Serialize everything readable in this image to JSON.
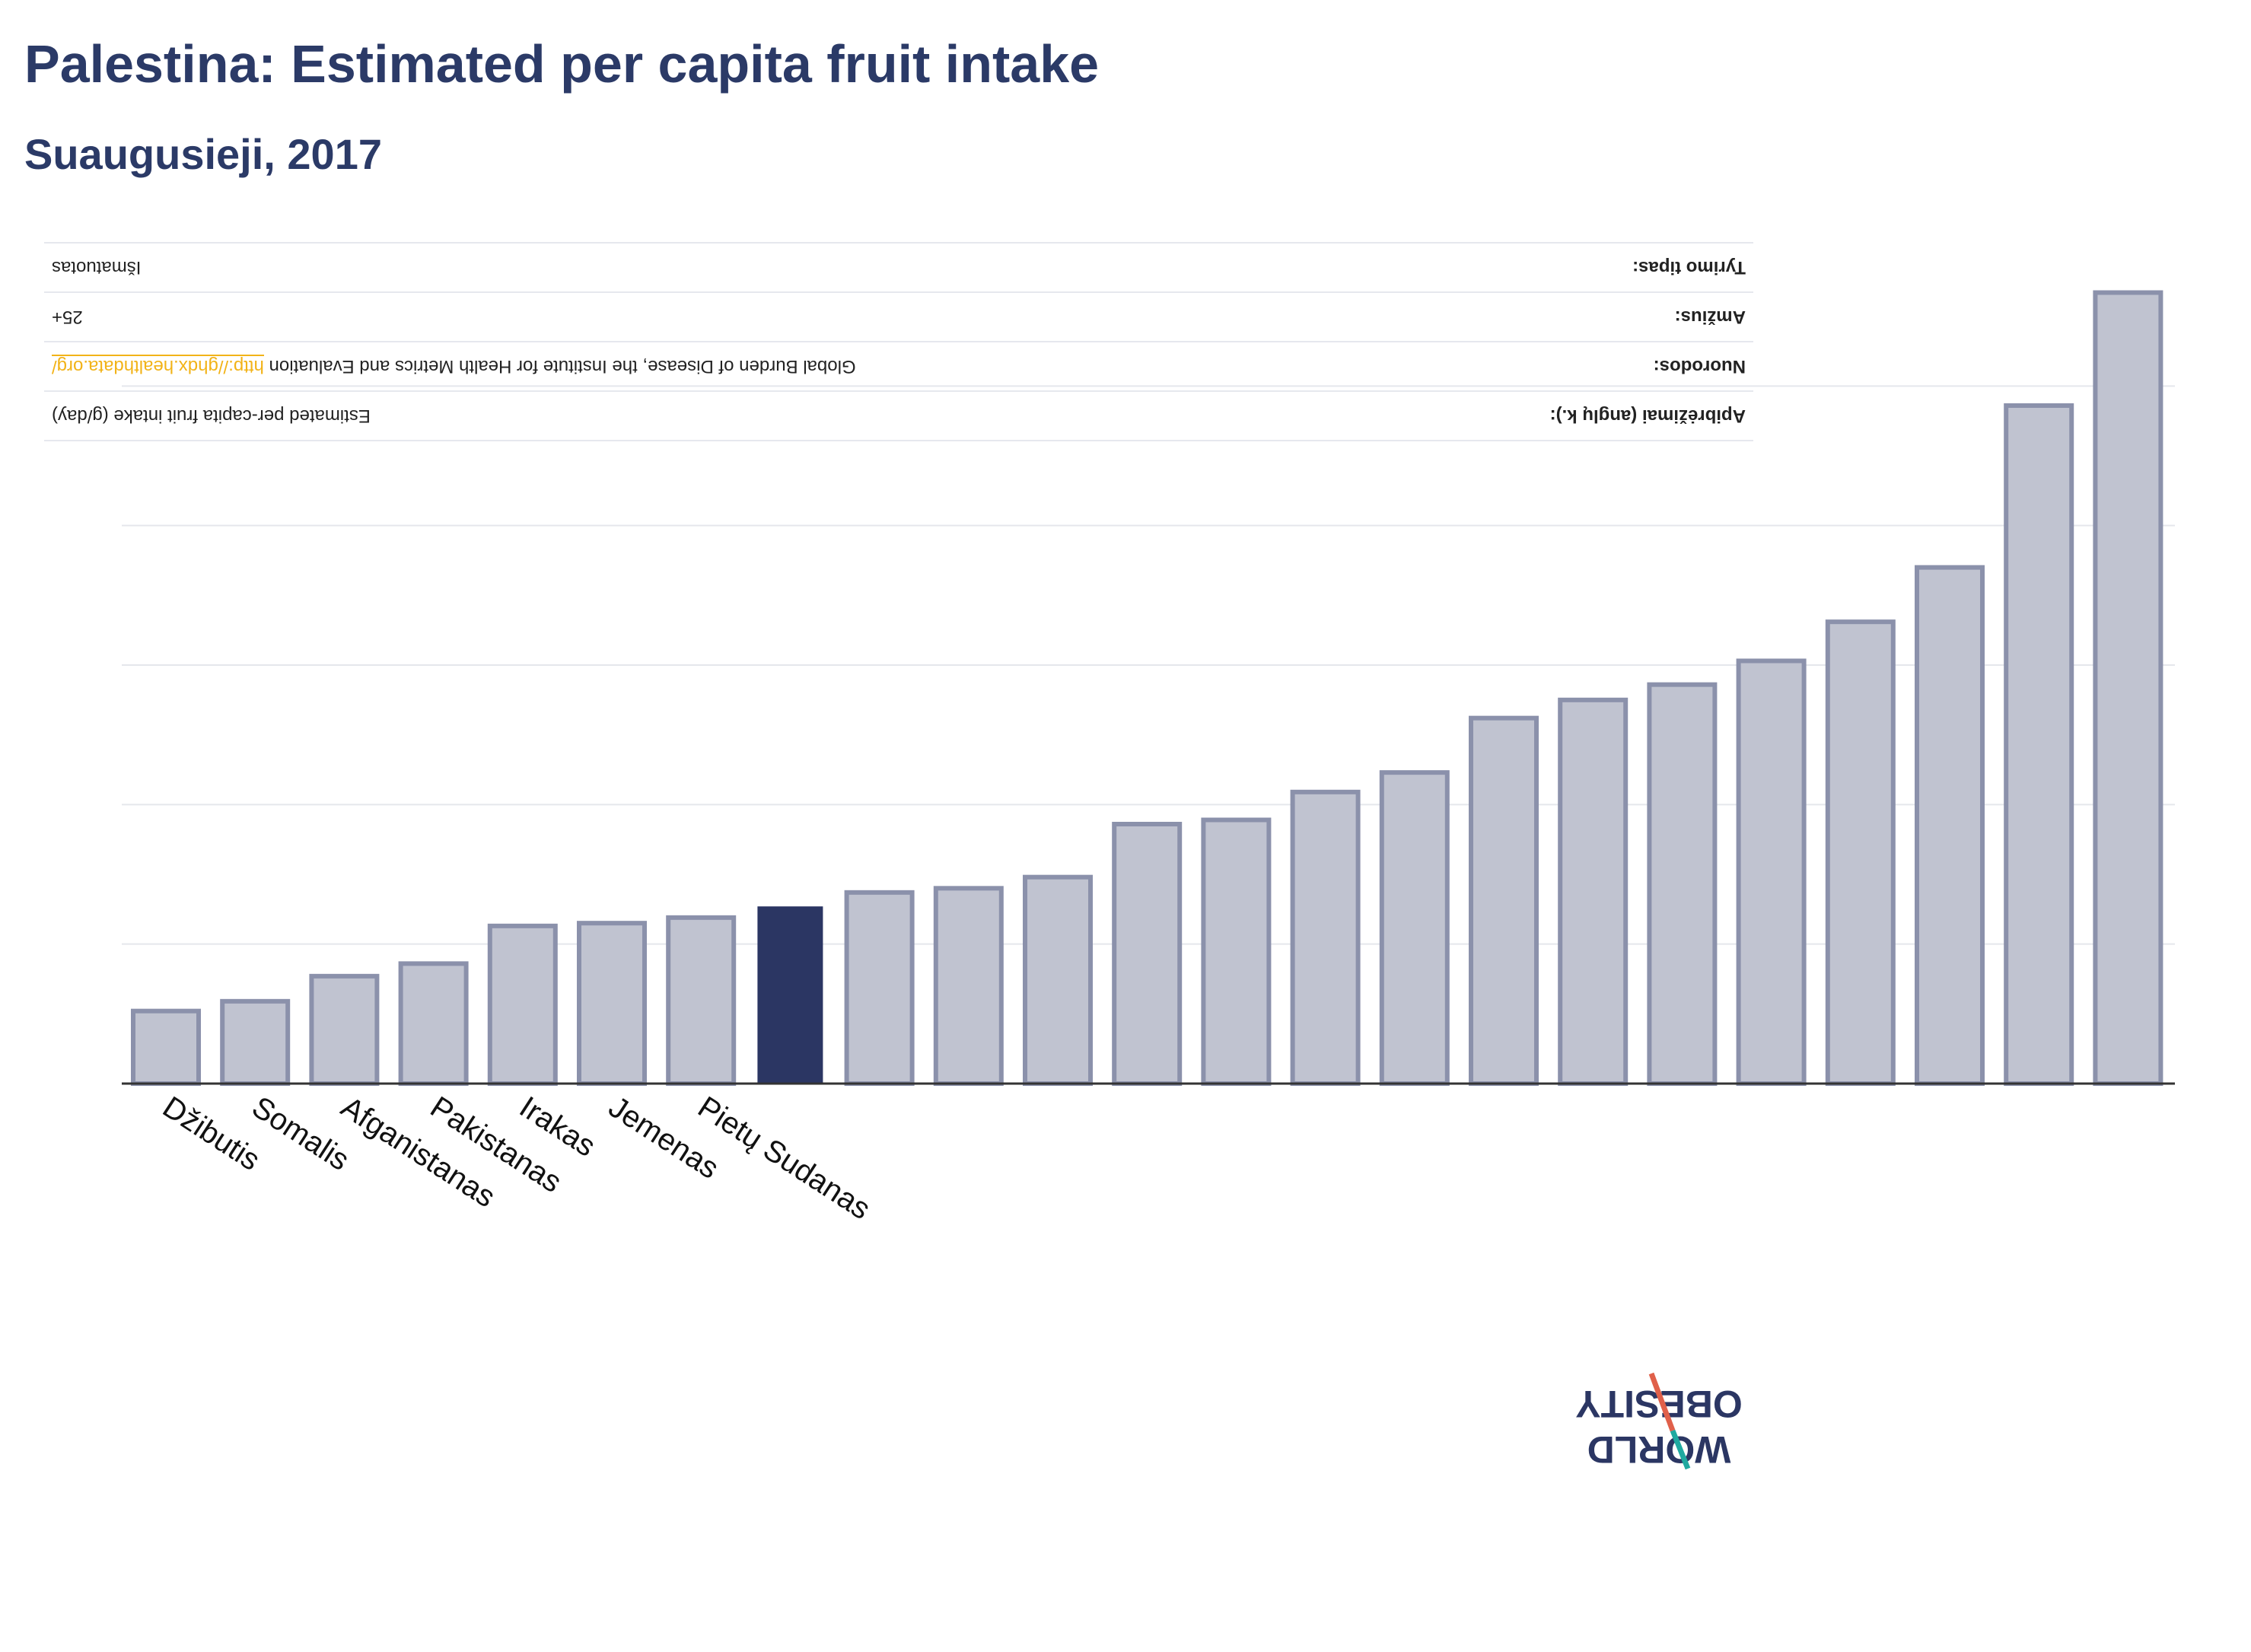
{
  "title": "Palestina: Estimated per capita fruit intake",
  "subtitle": "Suaugusieji, 2017",
  "info_panel": [
    {
      "label": "Apibrėžimai (anglų k.):",
      "value": "Estimated per-capita fruit intake (g/day)",
      "link": ""
    },
    {
      "label": "Nuorodos:",
      "value": "Global Burden of Disease, the Institute for Health Metrics and Evaluation ",
      "link": "http://ghdx.healthdata.org/"
    },
    {
      "label": "Amžius:",
      "value": "25+",
      "link": ""
    },
    {
      "label": "Tyrimo tipas:",
      "value": "Išmatuotas",
      "link": ""
    }
  ],
  "logo": {
    "line1": "WORLD",
    "line2": "OBESITY"
  },
  "colors": {
    "bar": "#c0c3d0",
    "bar_border": "#8b91ab",
    "highlight": "#2b3663",
    "grid": "#e5e7ec",
    "axis": "#333333"
  },
  "chart_data": {
    "type": "bar",
    "categories": [
      "Džibutis",
      "Somalis",
      "Afganistanas",
      "Pakistanas",
      "Irakas",
      "Jemenas",
      "Pietų Sudanas",
      "",
      "",
      "",
      "",
      "",
      "",
      "",
      "",
      "",
      "",
      "",
      "",
      "",
      "",
      "",
      ""
    ],
    "values": [
      52,
      59,
      77,
      86,
      113,
      115,
      119,
      127,
      137,
      140,
      148,
      186,
      189,
      209,
      223,
      262,
      275,
      286,
      303,
      331,
      370,
      486,
      567
    ],
    "highlight_index": 7,
    "ylim": [
      0,
      600
    ],
    "grid": true,
    "title": "Palestina: Estimated per capita fruit intake"
  }
}
